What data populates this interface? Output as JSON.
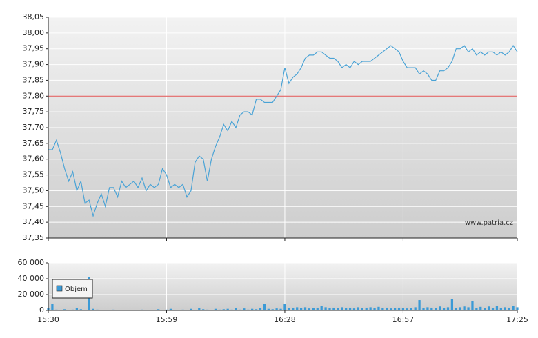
{
  "chart_data": [
    {
      "type": "line",
      "x": [
        "15:30",
        "15:31",
        "15:32",
        "15:33",
        "15:34",
        "15:35",
        "15:36",
        "15:37",
        "15:38",
        "15:39",
        "15:40",
        "15:41",
        "15:42",
        "15:43",
        "15:44",
        "15:45",
        "15:46",
        "15:47",
        "15:48",
        "15:49",
        "15:50",
        "15:51",
        "15:52",
        "15:53",
        "15:54",
        "15:55",
        "15:56",
        "15:57",
        "15:58",
        "15:59",
        "16:00",
        "16:01",
        "16:02",
        "16:03",
        "16:04",
        "16:05",
        "16:06",
        "16:07",
        "16:08",
        "16:09",
        "16:10",
        "16:11",
        "16:12",
        "16:13",
        "16:14",
        "16:15",
        "16:16",
        "16:17",
        "16:18",
        "16:19",
        "16:20",
        "16:21",
        "16:22",
        "16:23",
        "16:24",
        "16:25",
        "16:26",
        "16:27",
        "16:28",
        "16:29",
        "16:30",
        "16:31",
        "16:32",
        "16:33",
        "16:34",
        "16:35",
        "16:36",
        "16:37",
        "16:38",
        "16:39",
        "16:40",
        "16:41",
        "16:42",
        "16:43",
        "16:44",
        "16:45",
        "16:46",
        "16:47",
        "16:48",
        "16:49",
        "16:50",
        "16:51",
        "16:52",
        "16:53",
        "16:54",
        "16:55",
        "16:56",
        "16:57",
        "16:58",
        "16:59",
        "17:00",
        "17:01",
        "17:02",
        "17:03",
        "17:04",
        "17:05",
        "17:06",
        "17:07",
        "17:08",
        "17:09",
        "17:10",
        "17:11",
        "17:12",
        "17:13",
        "17:14",
        "17:15",
        "17:16",
        "17:17",
        "17:18",
        "17:19",
        "17:20",
        "17:21",
        "17:22",
        "17:23",
        "17:24",
        "17:25"
      ],
      "series": [
        {
          "color": "#4aa3d6",
          "values": [
            37.63,
            37.63,
            37.66,
            37.62,
            37.57,
            37.53,
            37.56,
            37.5,
            37.53,
            37.46,
            37.47,
            37.42,
            37.46,
            37.49,
            37.45,
            37.51,
            37.51,
            37.48,
            37.53,
            37.51,
            37.52,
            37.53,
            37.51,
            37.54,
            37.5,
            37.52,
            37.51,
            37.52,
            37.57,
            37.55,
            37.51,
            37.52,
            37.51,
            37.52,
            37.48,
            37.5,
            37.59,
            37.61,
            37.6,
            37.53,
            37.6,
            37.64,
            37.67,
            37.71,
            37.69,
            37.72,
            37.7,
            37.74,
            37.75,
            37.75,
            37.74,
            37.79,
            37.79,
            37.78,
            37.78,
            37.78,
            37.8,
            37.82,
            37.89,
            37.84,
            37.86,
            37.87,
            37.89,
            37.92,
            37.93,
            37.93,
            37.94,
            37.94,
            37.93,
            37.92,
            37.92,
            37.91,
            37.89,
            37.9,
            37.89,
            37.91,
            37.9,
            37.91,
            37.91,
            37.91,
            37.92,
            37.93,
            37.94,
            37.95,
            37.96,
            37.95,
            37.94,
            37.91,
            37.89,
            37.89,
            37.89,
            37.87,
            37.88,
            37.87,
            37.85,
            37.85,
            37.88,
            37.88,
            37.89,
            37.91,
            37.95,
            37.95,
            37.96,
            37.94,
            37.95,
            37.93,
            37.94,
            37.93,
            37.94,
            37.94,
            37.93,
            37.94,
            37.93,
            37.94,
            37.96,
            37.94
          ]
        }
      ],
      "ylim": [
        37.35,
        38.05
      ],
      "yticks": [
        {
          "value": 37.35,
          "label": "37,35"
        },
        {
          "value": 37.4,
          "label": "37,40"
        },
        {
          "value": 37.45,
          "label": "37,45"
        },
        {
          "value": 37.5,
          "label": "37,50"
        },
        {
          "value": 37.55,
          "label": "37,55"
        },
        {
          "value": 37.6,
          "label": "37,60"
        },
        {
          "value": 37.65,
          "label": "37,65"
        },
        {
          "value": 37.7,
          "label": "37,70"
        },
        {
          "value": 37.75,
          "label": "37,75"
        },
        {
          "value": 37.8,
          "label": "37,80"
        },
        {
          "value": 37.85,
          "label": "37,85"
        },
        {
          "value": 37.9,
          "label": "37,90"
        },
        {
          "value": 37.95,
          "label": "37,95"
        },
        {
          "value": 38.0,
          "label": "38,00"
        },
        {
          "value": 38.05,
          "label": "38,05"
        }
      ],
      "xlim": [
        "15:30",
        "17:25"
      ],
      "reference_line": {
        "value": 37.8,
        "color": "#e05050"
      },
      "grid": true,
      "annotation": "www.patria.cz"
    },
    {
      "type": "bar",
      "x": [
        "15:30",
        "15:31",
        "15:32",
        "15:33",
        "15:34",
        "15:35",
        "15:36",
        "15:37",
        "15:38",
        "15:39",
        "15:40",
        "15:41",
        "15:42",
        "15:43",
        "15:44",
        "15:45",
        "15:46",
        "15:47",
        "15:48",
        "15:49",
        "15:50",
        "15:51",
        "15:52",
        "15:53",
        "15:54",
        "15:55",
        "15:56",
        "15:57",
        "15:58",
        "15:59",
        "16:00",
        "16:01",
        "16:02",
        "16:03",
        "16:04",
        "16:05",
        "16:06",
        "16:07",
        "16:08",
        "16:09",
        "16:10",
        "16:11",
        "16:12",
        "16:13",
        "16:14",
        "16:15",
        "16:16",
        "16:17",
        "16:18",
        "16:19",
        "16:20",
        "16:21",
        "16:22",
        "16:23",
        "16:24",
        "16:25",
        "16:26",
        "16:27",
        "16:28",
        "16:29",
        "16:30",
        "16:31",
        "16:32",
        "16:33",
        "16:34",
        "16:35",
        "16:36",
        "16:37",
        "16:38",
        "16:39",
        "16:40",
        "16:41",
        "16:42",
        "16:43",
        "16:44",
        "16:45",
        "16:46",
        "16:47",
        "16:48",
        "16:49",
        "16:50",
        "16:51",
        "16:52",
        "16:53",
        "16:54",
        "16:55",
        "16:56",
        "16:57",
        "16:58",
        "16:59",
        "17:00",
        "17:01",
        "17:02",
        "17:03",
        "17:04",
        "17:05",
        "17:06",
        "17:07",
        "17:08",
        "17:09",
        "17:10",
        "17:11",
        "17:12",
        "17:13",
        "17:14",
        "17:15",
        "17:16",
        "17:17",
        "17:18",
        "17:19",
        "17:20",
        "17:21",
        "17:22",
        "17:23",
        "17:24",
        "17:25"
      ],
      "series": [
        {
          "name": "Objem",
          "color": "#3b9ad6",
          "values": [
            3000,
            8000,
            1000,
            0,
            1500,
            0,
            1000,
            3000,
            1500,
            0,
            42000,
            2000,
            1000,
            0,
            500,
            0,
            1000,
            0,
            500,
            0,
            0,
            500,
            0,
            1000,
            0,
            0,
            500,
            1500,
            0,
            1000,
            2000,
            500,
            0,
            1000,
            0,
            2000,
            500,
            3000,
            1500,
            1000,
            500,
            2000,
            1000,
            1500,
            2000,
            1000,
            3000,
            1000,
            2500,
            1000,
            2000,
            1500,
            3000,
            8000,
            2000,
            1500,
            2500,
            2000,
            8000,
            3000,
            3500,
            4000,
            3000,
            4000,
            2500,
            3000,
            3500,
            6000,
            4000,
            3000,
            3500,
            3000,
            4000,
            3000,
            3500,
            2500,
            4000,
            3000,
            3500,
            4000,
            3000,
            4500,
            3000,
            3500,
            2500,
            3000,
            3500,
            3000,
            2500,
            3000,
            4000,
            13000,
            3000,
            4000,
            3500,
            3000,
            5000,
            3000,
            4000,
            14000,
            3000,
            4000,
            5000,
            4000,
            12000,
            3000,
            4500,
            3000,
            5000,
            3000,
            6000,
            3000,
            4000,
            3500,
            6000,
            4000
          ]
        }
      ],
      "ylim": [
        0,
        60000
      ],
      "yticks": [
        0,
        {
          "value": 20000,
          "label": "20 000"
        },
        {
          "value": 40000,
          "label": "40 000"
        },
        {
          "value": 60000,
          "label": "60 000"
        }
      ],
      "xlim": [
        "15:30",
        "17:25"
      ],
      "xticks": [
        "15:30",
        "15:59",
        "16:28",
        "16:57",
        "17:25"
      ],
      "grid": true,
      "legend": "upper-left"
    }
  ]
}
